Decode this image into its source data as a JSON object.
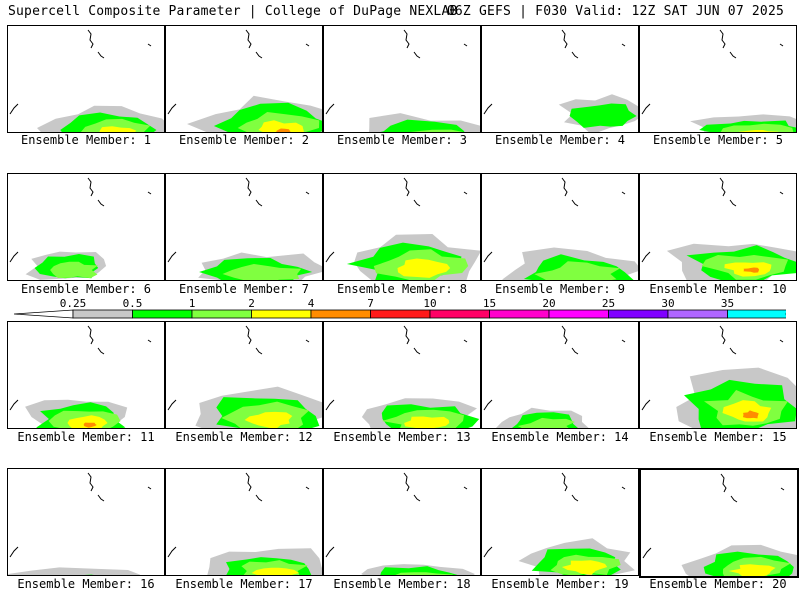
{
  "header": {
    "title_left": "Supercell Composite Parameter | College of DuPage NEXLAB",
    "title_right": "06Z GEFS | F030 Valid: 12Z SAT JUN 07 2025"
  },
  "member_label_prefix": "Ensemble Member:",
  "members": [
    {
      "label": "Ensemble Member: 1"
    },
    {
      "label": "Ensemble Member: 2"
    },
    {
      "label": "Ensemble Member: 3"
    },
    {
      "label": "Ensemble Member: 4"
    },
    {
      "label": "Ensemble Member: 5"
    },
    {
      "label": "Ensemble Member: 6"
    },
    {
      "label": "Ensemble Member: 7"
    },
    {
      "label": "Ensemble Member: 8"
    },
    {
      "label": "Ensemble Member: 9"
    },
    {
      "label": "Ensemble Member: 10"
    },
    {
      "label": "Ensemble Member: 11"
    },
    {
      "label": "Ensemble Member: 12"
    },
    {
      "label": "Ensemble Member: 13"
    },
    {
      "label": "Ensemble Member: 14"
    },
    {
      "label": "Ensemble Member: 15"
    },
    {
      "label": "Ensemble Member: 16"
    },
    {
      "label": "Ensemble Member: 17"
    },
    {
      "label": "Ensemble Member: 18"
    },
    {
      "label": "Ensemble Member: 19"
    },
    {
      "label": "Ensemble Member: 20"
    }
  ],
  "colorbar": {
    "labels": [
      "0.25",
      "0.5",
      "1",
      "2",
      "4",
      "7",
      "10",
      "15",
      "20",
      "25",
      "30",
      "35"
    ],
    "colors": [
      "#c8c8c8",
      "#00ff00",
      "#80ff40",
      "#ffff00",
      "#ff8c00",
      "#ff1a1a",
      "#ff0066",
      "#ff00cc",
      "#ff00ff",
      "#8000ff",
      "#b066ff",
      "#00ffff"
    ]
  }
}
